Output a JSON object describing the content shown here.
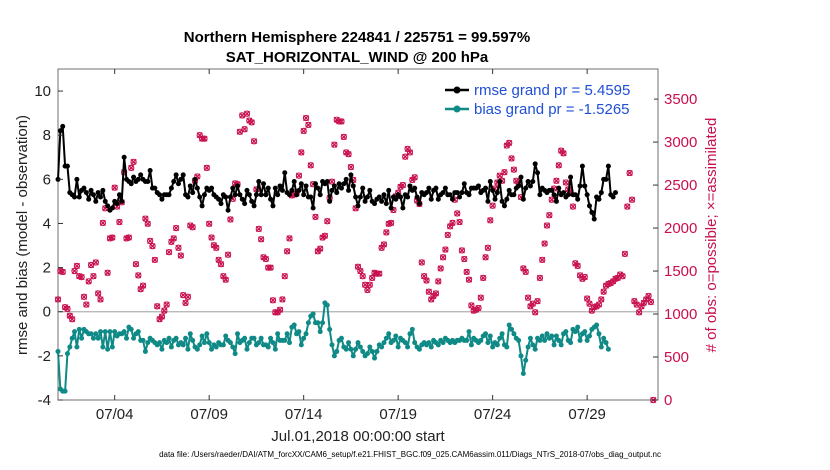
{
  "chart_data": {
    "type": "line",
    "title_line1": "Northern Hemisphere 224841 / 225751 = 99.597%",
    "title_line2": "SAT_HORIZONTAL_WIND @ 200 hPa",
    "xlabel": "Jul.01,2018 00:00:00 start",
    "ylabel_left": "rmse and bias (model - observation)",
    "ylabel_right": "# of obs: o=possible; ×=assimilated",
    "footnote": "data file: /Users/raeder/DAI/ATM_forcXX/CAM6_setup/f.e21.FHIST_BGC.f09_025.CAM6assim.011/Diags_NTrS_2018-07/obs_diag_output.nc",
    "xlim": [
      0,
      31.75
    ],
    "x_ticks": [
      {
        "x": 3,
        "label": "07/04"
      },
      {
        "x": 8,
        "label": "07/09"
      },
      {
        "x": 13,
        "label": "07/14"
      },
      {
        "x": 18,
        "label": "07/19"
      },
      {
        "x": 23,
        "label": "07/24"
      },
      {
        "x": 28,
        "label": "07/29"
      }
    ],
    "ylim_left": [
      -4,
      11
    ],
    "y_ticks_left": [
      -4,
      -2,
      0,
      2,
      4,
      6,
      8,
      10
    ],
    "ylim_right": [
      0,
      3850
    ],
    "y_ticks_right": [
      0,
      500,
      1000,
      1500,
      2000,
      2500,
      3000,
      3500
    ],
    "zero_line": 0,
    "legend": [
      "rmse grand pr = 5.4595",
      "bias grand pr = -1.5265"
    ],
    "colors": {
      "rmse": "#000000",
      "bias": "#0f8a86",
      "obs": "#c8104f",
      "zero": "#b0b0b0",
      "legend_text": "#1f4fd6"
    },
    "series": [
      {
        "name": "rmse",
        "values": [
          6.0,
          8.2,
          8.4,
          6.6,
          6.6,
          5.4,
          5.3,
          5.2,
          6.0,
          5.2,
          5.5,
          5.6,
          5.4,
          5.1,
          5.5,
          5.3,
          5.0,
          5.4,
          5.2,
          5.5,
          5.0,
          4.8,
          4.6,
          4.7,
          5.0,
          4.9,
          5.3,
          5.0,
          7.0,
          6.0,
          5.9,
          5.8,
          6.1,
          5.9,
          6.0,
          6.2,
          6.0,
          5.9,
          5.9,
          6.4,
          5.6,
          5.6,
          5.4,
          5.3,
          5.1,
          5.3,
          5.3,
          5.3,
          5.6,
          5.9,
          6.2,
          5.8,
          6.0,
          6.2,
          5.3,
          5.2,
          5.7,
          5.4,
          6.0,
          5.6,
          5.2,
          4.8,
          5.3,
          5.6,
          5.5,
          5.6,
          5.3,
          5.2,
          5.1,
          4.9,
          5.3,
          5.2,
          4.6,
          5.2,
          5.6,
          5.3,
          5.7,
          5.3,
          5.1,
          4.9,
          5.5,
          5.3,
          5.0,
          4.8,
          5.3,
          5.9,
          5.3,
          5.8,
          5.3,
          5.6,
          5.1,
          4.8,
          5.6,
          5.3,
          5.7,
          5.5,
          6.3,
          5.4,
          5.3,
          5.5,
          5.9,
          5.3,
          5.5,
          5.8,
          5.3,
          5.7,
          5.2,
          5.2,
          4.7,
          5.8,
          5.6,
          5.3,
          5.9,
          5.8,
          5.9,
          5.0,
          5.5,
          5.7,
          5.4,
          5.8,
          5.6,
          5.8,
          6.0,
          5.5,
          6.2,
          5.7,
          5.2,
          4.8,
          5.2,
          5.6,
          5.0,
          5.2,
          5.5,
          5.0,
          4.9,
          5.1,
          5.2,
          5.0,
          5.3,
          4.9,
          5.5,
          4.7,
          5.2,
          5.1,
          5.3,
          5.2,
          4.7,
          5.3,
          5.2,
          5.7,
          5.5,
          5.6,
          5.2,
          4.9,
          5.4,
          5.3,
          5.4,
          5.6,
          5.1,
          5.5,
          5.6,
          5.1,
          5.3,
          5.4,
          5.6,
          5.3,
          5.3,
          5.1,
          5.4,
          5.4,
          5.2,
          5.4,
          5.8,
          5.4,
          5.3,
          5.6,
          5.6,
          5.6,
          5.7,
          5.4,
          5.5,
          5.6,
          5.0,
          5.9,
          5.5,
          5.1,
          5.4,
          5.9,
          5.0,
          4.8,
          5.1,
          5.5,
          5.3,
          5.3,
          5.6,
          5.7,
          6.1,
          5.1,
          5.6,
          5.9,
          5.7,
          5.9,
          6.7,
          6.3,
          5.3,
          5.6,
          5.5,
          5.4,
          5.5,
          5.5,
          5.3,
          5.0,
          5.6,
          5.3,
          5.4,
          5.2,
          5.3,
          6.1,
          5.3,
          5.3,
          5.1,
          5.7,
          6.6,
          5.7,
          5.3,
          4.8,
          4.5,
          4.2,
          5.2,
          5.1,
          5.4,
          6.0,
          6.0,
          6.6,
          5.3,
          5.2,
          5.4
        ]
      },
      {
        "name": "bias",
        "values": [
          -1.8,
          -3.5,
          -3.6,
          -3.6,
          -1.9,
          -1.6,
          -1.2,
          -0.9,
          -1.6,
          -0.8,
          -1.2,
          -0.8,
          -0.9,
          -1.0,
          -1.0,
          -1.2,
          -1.0,
          -1.2,
          -0.9,
          -1.6,
          -0.9,
          -1.7,
          -0.9,
          -1.6,
          -0.9,
          -1.1,
          -1.0,
          -1.0,
          -0.9,
          -1.2,
          -0.7,
          -0.8,
          -1.2,
          -1.0,
          -0.9,
          -1.3,
          -1.3,
          -1.8,
          -1.4,
          -1.2,
          -1.3,
          -1.4,
          -1.5,
          -1.4,
          -1.7,
          -1.3,
          -1.4,
          -1.2,
          -1.6,
          -1.3,
          -1.2,
          -1.5,
          -1.4,
          -1.5,
          -1.2,
          -1.7,
          -1.0,
          -1.3,
          -1.6,
          -1.7,
          -1.5,
          -1.1,
          -1.4,
          -1.0,
          -1.4,
          -1.7,
          -1.5,
          -1.6,
          -1.4,
          -1.5,
          -1.5,
          -1.1,
          -1.3,
          -1.4,
          -1.6,
          -1.9,
          -1.0,
          -1.4,
          -1.3,
          -1.2,
          -1.7,
          -1.4,
          -1.2,
          -1.2,
          -1.5,
          -1.4,
          -1.2,
          -1.5,
          -1.5,
          -1.6,
          -1.2,
          -1.4,
          -1.7,
          -1.0,
          -1.3,
          -1.3,
          -1.3,
          -1.0,
          -1.4,
          -0.7,
          -0.6,
          -1.0,
          -0.9,
          -1.5,
          -1.2,
          -1.0,
          -0.5,
          -0.2,
          -0.1,
          -0.5,
          -0.5,
          -0.9,
          -0.5,
          0.4,
          0.3,
          -0.8,
          -1.5,
          -2.0,
          -1.8,
          -1.3,
          -1.2,
          -1.6,
          -1.7,
          -1.4,
          -1.7,
          -2.0,
          -1.7,
          -1.4,
          -1.6,
          -1.8,
          -2.0,
          -1.9,
          -1.6,
          -1.8,
          -2.1,
          -1.8,
          -1.5,
          -1.6,
          -1.4,
          -1.2,
          -1.0,
          -1.4,
          -1.3,
          -1.1,
          -1.6,
          -1.2,
          -1.3,
          -1.4,
          -1.6,
          -1.0,
          -0.8,
          -1.4,
          -1.6,
          -1.7,
          -1.5,
          -1.4,
          -1.5,
          -1.4,
          -1.6,
          -1.3,
          -1.4,
          -1.5,
          -1.3,
          -1.4,
          -1.2,
          -1.3,
          -1.4,
          -1.3,
          -1.4,
          -1.3,
          -1.3,
          -1.2,
          -1.3,
          -1.3,
          -0.9,
          -1.5,
          -1.2,
          -1.3,
          -1.4,
          -1.3,
          -1.1,
          -1.0,
          -1.4,
          -1.1,
          -1.6,
          -1.4,
          -1.5,
          -1.2,
          -1.0,
          -1.5,
          -1.6,
          -0.6,
          -0.8,
          -1.0,
          -1.2,
          -1.3,
          -2.0,
          -2.8,
          -2.2,
          -1.6,
          -1.2,
          -1.5,
          -1.7,
          -1.2,
          -1.3,
          -1.1,
          -1.3,
          -1.0,
          -1.2,
          -1.1,
          -1.5,
          -1.1,
          -1.3,
          -1.5,
          -1.0,
          -0.9,
          -1.3,
          -1.4,
          -0.8,
          -0.9,
          -0.7,
          -1.3,
          -1.0,
          -0.9,
          -1.3,
          -1.1,
          -0.8,
          -0.7,
          -0.6,
          -1.0,
          -1.6,
          -1.2,
          -1.4,
          -1.7
        ]
      },
      {
        "name": "obs_possible",
        "values": [
          1170,
          1500,
          1490,
          1080,
          1060,
          980,
          940,
          1500,
          1560,
          1440,
          1430,
          1200,
          1110,
          1380,
          1570,
          1440,
          1600,
          1240,
          1170,
          2060,
          2230,
          1480,
          1880,
          1890,
          2470,
          2250,
          2070,
          2300,
          2650,
          1880,
          1890,
          2700,
          2770,
          1580,
          1450,
          1290,
          1330,
          2110,
          2050,
          1850,
          1790,
          1630,
          1090,
          940,
          970,
          1040,
          1110,
          1720,
          1840,
          1880,
          2000,
          1770,
          1680,
          1220,
          1130,
          1200,
          2030,
          2010,
          2550,
          2600,
          3080,
          3040,
          3040,
          2700,
          2050,
          1890,
          1800,
          1770,
          1630,
          1580,
          1440,
          1400,
          1690,
          2100,
          2340,
          2520,
          2510,
          3120,
          3310,
          3150,
          3330,
          3250,
          3230,
          3010,
          2450,
          1990,
          1870,
          1660,
          1640,
          1540,
          1540,
          1160,
          1020,
          1020,
          1050,
          1170,
          1440,
          1730,
          1880,
          2380,
          2390,
          2400,
          2610,
          2880,
          3130,
          3280,
          3200,
          2730,
          2510,
          2130,
          1730,
          1760,
          1890,
          1910,
          2080,
          2350,
          2540,
          2970,
          3260,
          3240,
          3240,
          3060,
          2880,
          2860,
          2710,
          2560,
          2230,
          1550,
          1500,
          1440,
          1340,
          1280,
          1340,
          1420,
          1480,
          1470,
          1470,
          1770,
          1810,
          1950,
          2050,
          2060,
          2210,
          2370,
          2410,
          2480,
          2500,
          2830,
          2920,
          2880,
          2560,
          2590,
          2320,
          2280,
          1600,
          1440,
          1390,
          1260,
          1170,
          1210,
          1240,
          1380,
          1530,
          1660,
          1750,
          1920,
          2020,
          2060,
          2330,
          2170,
          2070,
          1740,
          1640,
          1490,
          1400,
          1100,
          1040,
          1050,
          1070,
          1190,
          1420,
          1660,
          1770,
          2090,
          2260,
          2460,
          2530,
          2610,
          2550,
          2650,
          2960,
          2990,
          2810,
          2680,
          2550,
          2520,
          2360,
          1530,
          1490,
          1190,
          1090,
          1120,
          1020,
          1150,
          1420,
          1630,
          1820,
          2030,
          2150,
          2330,
          2460,
          2550,
          2730,
          2900,
          2870,
          2530,
          2450,
          2410,
          2250,
          1590,
          1560,
          1450,
          1410,
          1430,
          1180,
          1120,
          1040,
          1080,
          1090,
          1110,
          1170,
          1260,
          1330,
          1350,
          1360,
          1380,
          1410,
          1420,
          1460,
          1440,
          1700,
          2250,
          2640,
          2330,
          1150,
          1110,
          1020,
          1090,
          1130,
          1170,
          1210,
          1140,
          0
        ]
      }
    ]
  }
}
